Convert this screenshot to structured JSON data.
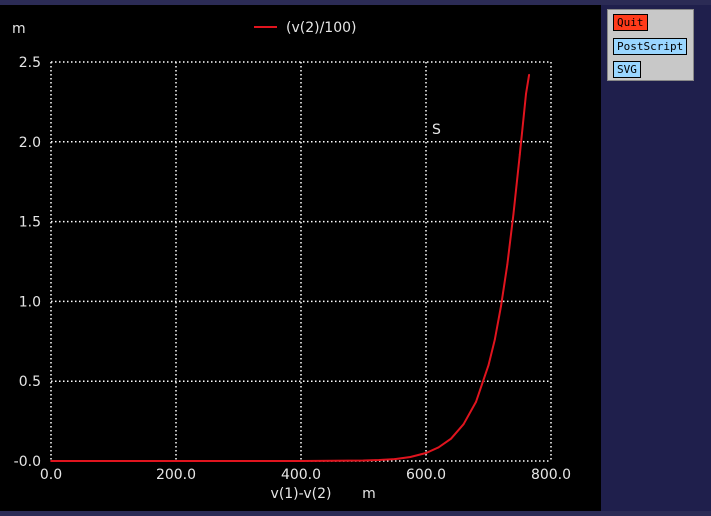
{
  "buttons": {
    "quit": "Quit",
    "postscript": "PostScript",
    "svg": "SVG"
  },
  "colors": {
    "background": "#000000",
    "trace": "#e0141e",
    "grid": "#ffffff",
    "text": "#e6e6e6",
    "frame": "#2b2b55"
  },
  "chart_data": {
    "type": "line",
    "legend_position": "top-center",
    "grid": true,
    "y_unit": "m",
    "x_axis_label": "v(1)-v(2)",
    "x_unit": "m",
    "annotation": "S",
    "xlim": [
      0,
      800
    ],
    "ylim": [
      0,
      2.5
    ],
    "x_ticks": [
      0,
      200,
      400,
      600,
      800
    ],
    "x_tick_labels": [
      "0.0",
      "200.0",
      "400.0",
      "600.0",
      "800.0"
    ],
    "y_ticks": [
      0,
      0.5,
      1.0,
      1.5,
      2.0,
      2.5
    ],
    "y_tick_labels": [
      "-0.0",
      "0.5",
      "1.0",
      "1.5",
      "2.0",
      "2.5"
    ],
    "series": [
      {
        "name": "(v(2)/100)",
        "color": "#e0141e",
        "x": [
          0,
          100,
          200,
          300,
          400,
          450,
          500,
          525,
          550,
          575,
          600,
          620,
          640,
          660,
          680,
          700,
          710,
          720,
          730,
          740,
          750,
          760,
          765
        ],
        "y": [
          0,
          0,
          0,
          0,
          0.0003,
          0.001,
          0.003,
          0.006,
          0.012,
          0.025,
          0.05,
          0.085,
          0.14,
          0.23,
          0.37,
          0.6,
          0.76,
          0.97,
          1.23,
          1.55,
          1.92,
          2.3,
          2.42
        ]
      }
    ]
  }
}
